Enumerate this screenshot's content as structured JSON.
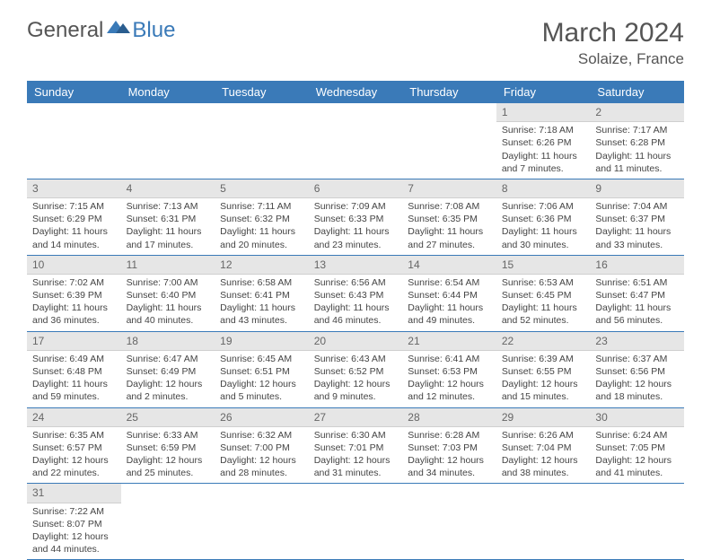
{
  "logo": {
    "general": "General",
    "blue": "Blue"
  },
  "title": "March 2024",
  "location": "Solaize, France",
  "colors": {
    "header_bg": "#3a7ab8",
    "header_text": "#ffffff",
    "daynum_bg": "#e6e6e6",
    "border": "#3a7ab8",
    "body_text": "#444444"
  },
  "day_names": [
    "Sunday",
    "Monday",
    "Tuesday",
    "Wednesday",
    "Thursday",
    "Friday",
    "Saturday"
  ],
  "weeks": [
    [
      null,
      null,
      null,
      null,
      null,
      {
        "n": "1",
        "sr": "7:18 AM",
        "ss": "6:26 PM",
        "dl": "11 hours and 7 minutes."
      },
      {
        "n": "2",
        "sr": "7:17 AM",
        "ss": "6:28 PM",
        "dl": "11 hours and 11 minutes."
      }
    ],
    [
      {
        "n": "3",
        "sr": "7:15 AM",
        "ss": "6:29 PM",
        "dl": "11 hours and 14 minutes."
      },
      {
        "n": "4",
        "sr": "7:13 AM",
        "ss": "6:31 PM",
        "dl": "11 hours and 17 minutes."
      },
      {
        "n": "5",
        "sr": "7:11 AM",
        "ss": "6:32 PM",
        "dl": "11 hours and 20 minutes."
      },
      {
        "n": "6",
        "sr": "7:09 AM",
        "ss": "6:33 PM",
        "dl": "11 hours and 23 minutes."
      },
      {
        "n": "7",
        "sr": "7:08 AM",
        "ss": "6:35 PM",
        "dl": "11 hours and 27 minutes."
      },
      {
        "n": "8",
        "sr": "7:06 AM",
        "ss": "6:36 PM",
        "dl": "11 hours and 30 minutes."
      },
      {
        "n": "9",
        "sr": "7:04 AM",
        "ss": "6:37 PM",
        "dl": "11 hours and 33 minutes."
      }
    ],
    [
      {
        "n": "10",
        "sr": "7:02 AM",
        "ss": "6:39 PM",
        "dl": "11 hours and 36 minutes."
      },
      {
        "n": "11",
        "sr": "7:00 AM",
        "ss": "6:40 PM",
        "dl": "11 hours and 40 minutes."
      },
      {
        "n": "12",
        "sr": "6:58 AM",
        "ss": "6:41 PM",
        "dl": "11 hours and 43 minutes."
      },
      {
        "n": "13",
        "sr": "6:56 AM",
        "ss": "6:43 PM",
        "dl": "11 hours and 46 minutes."
      },
      {
        "n": "14",
        "sr": "6:54 AM",
        "ss": "6:44 PM",
        "dl": "11 hours and 49 minutes."
      },
      {
        "n": "15",
        "sr": "6:53 AM",
        "ss": "6:45 PM",
        "dl": "11 hours and 52 minutes."
      },
      {
        "n": "16",
        "sr": "6:51 AM",
        "ss": "6:47 PM",
        "dl": "11 hours and 56 minutes."
      }
    ],
    [
      {
        "n": "17",
        "sr": "6:49 AM",
        "ss": "6:48 PM",
        "dl": "11 hours and 59 minutes."
      },
      {
        "n": "18",
        "sr": "6:47 AM",
        "ss": "6:49 PM",
        "dl": "12 hours and 2 minutes."
      },
      {
        "n": "19",
        "sr": "6:45 AM",
        "ss": "6:51 PM",
        "dl": "12 hours and 5 minutes."
      },
      {
        "n": "20",
        "sr": "6:43 AM",
        "ss": "6:52 PM",
        "dl": "12 hours and 9 minutes."
      },
      {
        "n": "21",
        "sr": "6:41 AM",
        "ss": "6:53 PM",
        "dl": "12 hours and 12 minutes."
      },
      {
        "n": "22",
        "sr": "6:39 AM",
        "ss": "6:55 PM",
        "dl": "12 hours and 15 minutes."
      },
      {
        "n": "23",
        "sr": "6:37 AM",
        "ss": "6:56 PM",
        "dl": "12 hours and 18 minutes."
      }
    ],
    [
      {
        "n": "24",
        "sr": "6:35 AM",
        "ss": "6:57 PM",
        "dl": "12 hours and 22 minutes."
      },
      {
        "n": "25",
        "sr": "6:33 AM",
        "ss": "6:59 PM",
        "dl": "12 hours and 25 minutes."
      },
      {
        "n": "26",
        "sr": "6:32 AM",
        "ss": "7:00 PM",
        "dl": "12 hours and 28 minutes."
      },
      {
        "n": "27",
        "sr": "6:30 AM",
        "ss": "7:01 PM",
        "dl": "12 hours and 31 minutes."
      },
      {
        "n": "28",
        "sr": "6:28 AM",
        "ss": "7:03 PM",
        "dl": "12 hours and 34 minutes."
      },
      {
        "n": "29",
        "sr": "6:26 AM",
        "ss": "7:04 PM",
        "dl": "12 hours and 38 minutes."
      },
      {
        "n": "30",
        "sr": "6:24 AM",
        "ss": "7:05 PM",
        "dl": "12 hours and 41 minutes."
      }
    ],
    [
      {
        "n": "31",
        "sr": "7:22 AM",
        "ss": "8:07 PM",
        "dl": "12 hours and 44 minutes."
      },
      null,
      null,
      null,
      null,
      null,
      null
    ]
  ],
  "labels": {
    "sunrise": "Sunrise:",
    "sunset": "Sunset:",
    "daylight": "Daylight:"
  }
}
